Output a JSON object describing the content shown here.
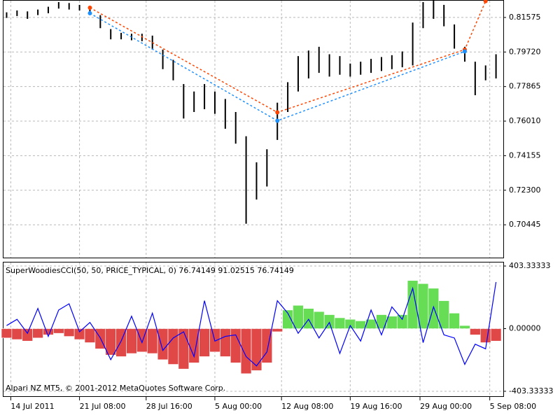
{
  "chart_data": [
    {
      "type": "bar-ohlc",
      "color": "#000000",
      "grid": true,
      "xlim": [
        -0.3,
        47.7
      ],
      "xticks": [
        {
          "value": 0.4,
          "label": "14 Jul 2011"
        },
        {
          "value": 7,
          "label": "21 Jul 08:00"
        },
        {
          "value": 13.4,
          "label": "28 Jul 16:00"
        },
        {
          "value": 20,
          "label": "5 Aug 00:00"
        },
        {
          "value": 26.4,
          "label": "12 Aug 08:00"
        },
        {
          "value": 33,
          "label": "19 Aug 16:00"
        },
        {
          "value": 39.7,
          "label": "29 Aug 00:00"
        },
        {
          "value": 46.4,
          "label": "5 Sep 08:00"
        }
      ],
      "ylim": [
        0.68684,
        0.82474
      ],
      "yticks": [
        0.81575,
        {
          "value": 0.7972,
          "label": "0.79720"
        },
        0.77865,
        {
          "value": 0.7601,
          "label": "0.76010"
        },
        0.74155,
        {
          "value": 0.723,
          "label": "0.72300"
        },
        0.70445
      ],
      "high": [
        0.8185,
        0.8195,
        0.819,
        0.82,
        0.8215,
        0.824,
        0.8235,
        0.8225,
        0.8215,
        0.817,
        0.8095,
        0.8075,
        0.807,
        0.807,
        0.806,
        0.7985,
        0.793,
        0.78,
        0.776,
        0.78,
        0.776,
        0.772,
        0.765,
        0.752,
        0.738,
        0.745,
        0.77,
        0.781,
        0.795,
        0.798,
        0.8,
        0.796,
        0.795,
        0.791,
        0.792,
        0.7935,
        0.7945,
        0.7955,
        0.7975,
        0.813,
        0.824,
        0.825,
        0.8225,
        0.812,
        0.8,
        0.792,
        0.79,
        0.796
      ],
      "low": [
        0.8155,
        0.8165,
        0.815,
        0.817,
        0.818,
        0.8205,
        0.82,
        0.8195,
        0.8175,
        0.81,
        0.804,
        0.804,
        0.8035,
        0.803,
        0.7985,
        0.788,
        0.782,
        0.7615,
        0.765,
        0.7665,
        0.764,
        0.756,
        0.748,
        0.705,
        0.718,
        0.725,
        0.75,
        0.765,
        0.776,
        0.783,
        0.786,
        0.784,
        0.785,
        0.784,
        0.785,
        0.786,
        0.787,
        0.788,
        0.789,
        0.79,
        0.81,
        0.815,
        0.811,
        0.799,
        0.792,
        0.774,
        0.782,
        0.783
      ],
      "zigzags": [
        {
          "color": "#ff4500",
          "x": [
            8,
            26,
            44,
            46
          ],
          "values": [
            0.821,
            0.7648,
            0.7985,
            0.8245
          ]
        },
        {
          "color": "#1e90ff",
          "x": [
            8,
            26,
            44
          ],
          "values": [
            0.818,
            0.7603,
            0.7975
          ]
        }
      ],
      "footer": "Alpari NZ MT5, © 2001-2012 MetaQuotes Software Corp."
    },
    {
      "type": "histogram-line",
      "title": "SuperWoodiesCCI(50, 50, PRICE_TYPICAL, 0) 76.74149 91.02515 76.74149",
      "xlim": [
        -0.3,
        47.7
      ],
      "ylim": [
        -435,
        426
      ],
      "yticks": [
        403.33333,
        {
          "value": 0,
          "label": "0.00000"
        },
        -403.33333
      ],
      "positive_color": "#66dd55",
      "negative_color": "#e04848",
      "values": [
        -60,
        -70,
        -80,
        -60,
        -40,
        -30,
        -50,
        -70,
        -90,
        -130,
        -170,
        -180,
        -160,
        -150,
        -160,
        -200,
        -230,
        -260,
        -220,
        -180,
        -150,
        -180,
        -220,
        -290,
        -270,
        -220,
        -20,
        120,
        150,
        130,
        110,
        90,
        70,
        60,
        50,
        60,
        90,
        80,
        90,
        310,
        290,
        260,
        180,
        100,
        20,
        -40,
        -90,
        -80
      ],
      "line": {
        "color": "#0000ff",
        "values": [
          20,
          60,
          -30,
          130,
          -50,
          120,
          160,
          -20,
          40,
          -60,
          -200,
          -80,
          80,
          -90,
          100,
          -140,
          -60,
          -20,
          -180,
          180,
          -80,
          -50,
          -40,
          -180,
          -240,
          -150,
          180,
          100,
          -30,
          60,
          -60,
          40,
          -160,
          20,
          -80,
          120,
          -40,
          140,
          60,
          260,
          -90,
          140,
          -40,
          -60,
          -230,
          -100,
          -130,
          300
        ]
      }
    }
  ]
}
